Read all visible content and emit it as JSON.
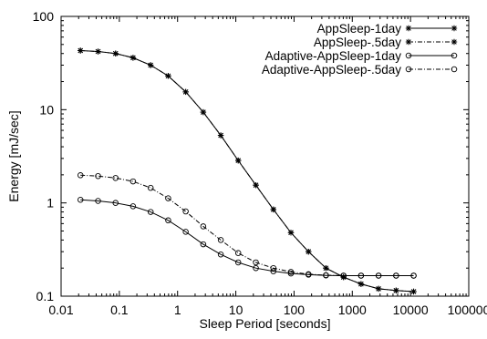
{
  "chart_data": {
    "type": "line",
    "title": "",
    "xlabel": "Sleep Period [seconds]",
    "ylabel": "Energy [mJ/sec]",
    "xscale": "log",
    "yscale": "log",
    "xlim": [
      0.01,
      100000
    ],
    "ylim": [
      0.1,
      100
    ],
    "x_ticks": [
      0.01,
      0.1,
      1,
      10,
      100,
      1000,
      10000,
      100000
    ],
    "x_tick_labels": [
      "0.01",
      "0.1",
      "1",
      "10",
      "100",
      "1000",
      "10000",
      "100000"
    ],
    "y_ticks": [
      0.1,
      1,
      10,
      100
    ],
    "y_tick_labels": [
      "0.1",
      "1",
      "10",
      "100"
    ],
    "grid": false,
    "legend_position": "top-right",
    "x": [
      0.0215,
      0.0431,
      0.0862,
      0.172,
      0.345,
      0.69,
      1.38,
      2.76,
      5.52,
      11.0,
      22.1,
      44.2,
      88.4,
      177,
      353,
      707,
      1414,
      2828,
      5655,
      11310
    ],
    "series": [
      {
        "name": "AppSleep-1day",
        "marker": "star",
        "line_style": "solid",
        "values": [
          43.0,
          42.0,
          40.0,
          36.0,
          30.0,
          23.0,
          15.5,
          9.4,
          5.3,
          2.85,
          1.55,
          0.85,
          0.48,
          0.3,
          0.2,
          0.16,
          0.135,
          0.12,
          0.115,
          0.112
        ]
      },
      {
        "name": "AppSleep-.5day",
        "marker": "star",
        "line_style": "dashdot",
        "values": [
          43.0,
          42.0,
          40.0,
          36.0,
          30.0,
          23.0,
          15.5,
          9.4,
          5.3,
          2.85,
          1.55,
          0.85,
          0.48,
          0.3,
          0.2,
          0.16,
          0.135,
          0.12,
          0.115,
          0.112
        ]
      },
      {
        "name": "Adaptive-AppSleep-1day",
        "marker": "circle",
        "line_style": "solid",
        "values": [
          1.08,
          1.05,
          1.0,
          0.92,
          0.8,
          0.65,
          0.49,
          0.36,
          0.28,
          0.23,
          0.2,
          0.185,
          0.175,
          0.17,
          0.167,
          0.166,
          0.166,
          0.166,
          0.166,
          0.166
        ]
      },
      {
        "name": "Adaptive-AppSleep-.5day",
        "marker": "circle",
        "line_style": "dashdot",
        "values": [
          1.98,
          1.94,
          1.85,
          1.7,
          1.45,
          1.12,
          0.81,
          0.56,
          0.4,
          0.29,
          0.23,
          0.2,
          0.182,
          0.172,
          0.168,
          0.166,
          0.166,
          0.166,
          0.166,
          0.166
        ]
      }
    ]
  }
}
